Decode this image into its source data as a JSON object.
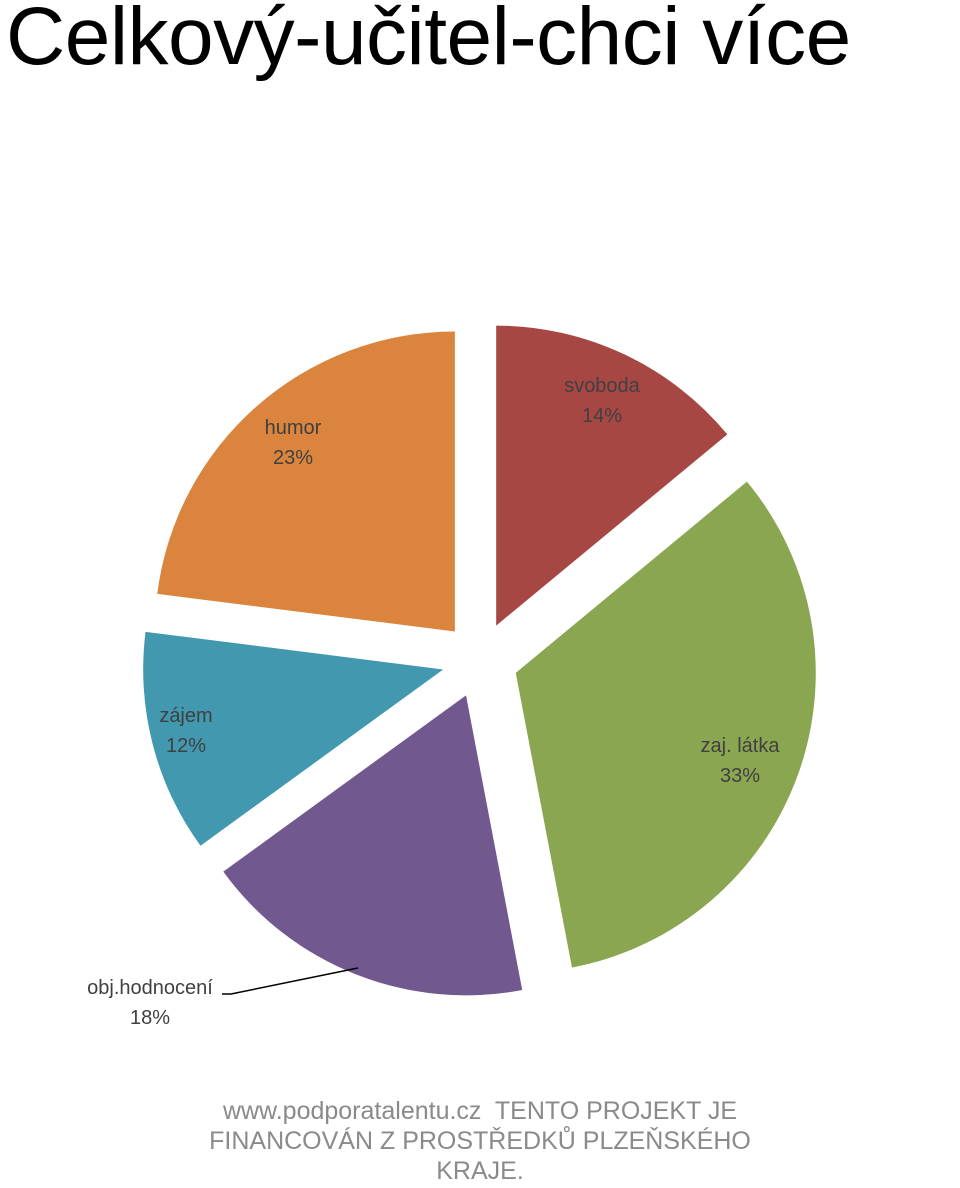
{
  "slide": {
    "title": "Celkový-učitel-chci více",
    "footer_url": "www.podporatalentu.cz",
    "footer_text": "TENTO PROJEKT JE FINANCOVÁN Z PROSTŘEDKŮ PLZEŇSKÉHO KRAJE."
  },
  "chart_data": {
    "type": "pie",
    "title": "",
    "exploded": true,
    "slices": [
      {
        "label": "svoboda",
        "percent_label": "14%",
        "value": 14,
        "color": "#A64744"
      },
      {
        "label": "zaj. látka",
        "percent_label": "33%",
        "value": 33,
        "color": "#8BA650"
      },
      {
        "label": "obj.hodnocení",
        "percent_label": "18%",
        "value": 18,
        "color": "#71588F"
      },
      {
        "label": "zájem",
        "percent_label": "12%",
        "value": 12,
        "color": "#4198AF"
      },
      {
        "label": "humor",
        "percent_label": "23%",
        "value": 23,
        "color": "#DB843D"
      }
    ]
  }
}
